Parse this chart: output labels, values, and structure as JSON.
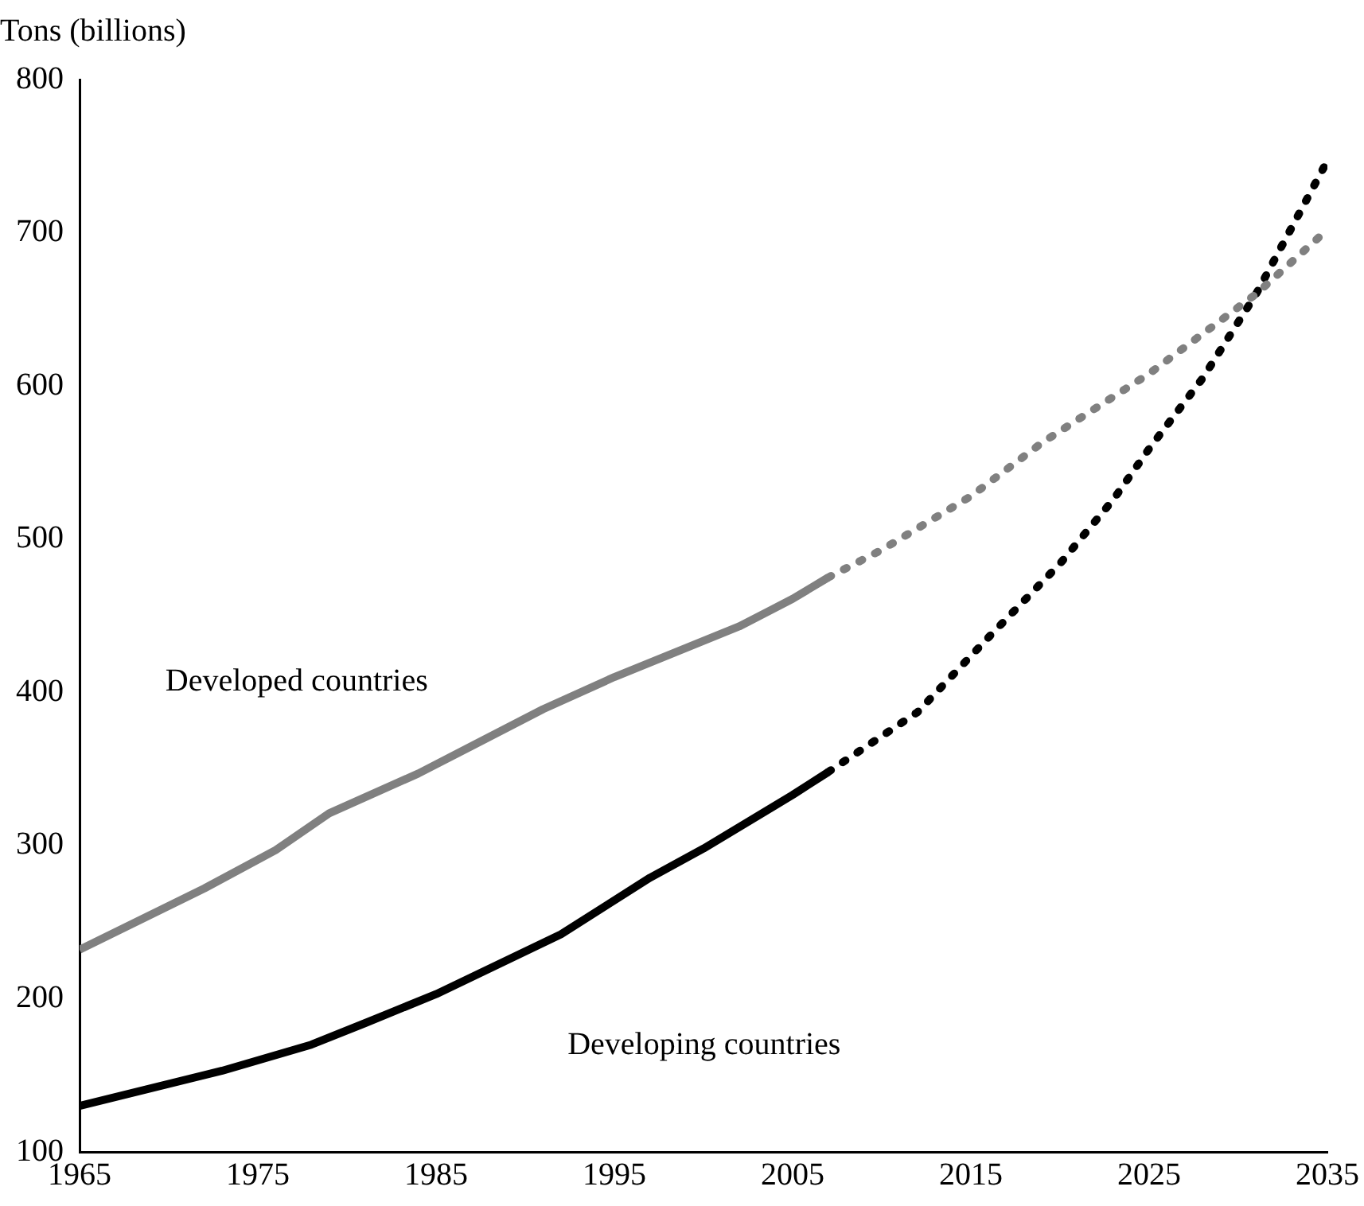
{
  "chart_data": {
    "type": "line",
    "ylabel": "Tons (billions)",
    "xlim": [
      1965,
      2035
    ],
    "xticks": [
      1965,
      1975,
      1985,
      1995,
      2005,
      2015,
      2025,
      2035
    ],
    "ylim": [
      100,
      800
    ],
    "yticks": [
      100,
      200,
      300,
      400,
      500,
      600,
      700,
      800
    ],
    "grid": false,
    "legend": false,
    "marker": "none",
    "series": [
      {
        "name": "Developed countries",
        "color": "#808080",
        "line_style": "solid",
        "x": [
          1965,
          1972,
          1976,
          1979,
          1984,
          1987,
          1991,
          1995,
          2002,
          2005,
          2007
        ],
        "values": [
          232,
          272,
          297,
          321,
          347,
          365,
          389,
          410,
          443,
          461,
          475
        ]
      },
      {
        "color": "#808080",
        "line_style": "dotted",
        "x": [
          2007,
          2010,
          2015,
          2019,
          2025,
          2031,
          2035
        ],
        "values": [
          475,
          493,
          528,
          563,
          608,
          660,
          702
        ]
      },
      {
        "name": "Developing countries",
        "color": "#000000",
        "line_style": "solid",
        "x": [
          1965,
          1973,
          1978,
          1981,
          1985,
          1992,
          1997,
          2000,
          2005,
          2007
        ],
        "values": [
          130,
          153,
          170,
          184,
          203,
          242,
          279,
          298,
          333,
          348
        ]
      },
      {
        "color": "#000000",
        "line_style": "dotted",
        "x": [
          2007,
          2012,
          2016,
          2020,
          2023,
          2025,
          2028,
          2031,
          2035
        ],
        "values": [
          348,
          387,
          436,
          484,
          526,
          559,
          605,
          660,
          747
        ]
      }
    ]
  }
}
